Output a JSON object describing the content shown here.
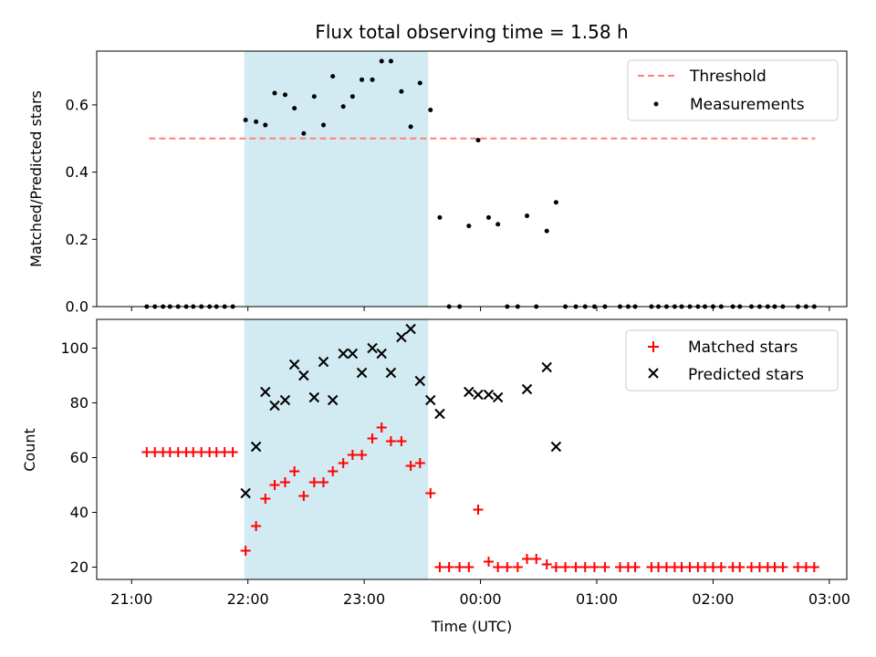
{
  "figure": {
    "title": "Flux total observing time = 1.58 h",
    "xlabel": "Time (UTC)",
    "xtick_labels": [
      "21:00",
      "22:00",
      "23:00",
      "00:00",
      "01:00",
      "02:00",
      "03:00"
    ]
  },
  "chart_data": [
    {
      "type": "scatter",
      "panel": "top",
      "ylabel": "Matched/Predicted stars",
      "x_unit": "hours since 21:00 UTC",
      "xlim": [
        -0.3,
        6.15
      ],
      "ylim": [
        0,
        0.76
      ],
      "yticks": [
        0.0,
        0.2,
        0.4,
        0.6
      ],
      "ytick_labels": [
        "0.0",
        "0.2",
        "0.4",
        "0.6"
      ],
      "highlight_span": {
        "x": [
          0.97,
          2.55
        ],
        "color": "#add8e6"
      },
      "legend": {
        "position": "upper right",
        "entries": [
          "Threshold",
          "Measurements"
        ]
      },
      "series": [
        {
          "name": "Threshold",
          "style": "dashed-line",
          "color": "#ff7f7f",
          "x": [
            0.15,
            5.88
          ],
          "y": [
            0.5,
            0.5
          ]
        },
        {
          "name": "Measurements",
          "style": "dot",
          "color": "#000000",
          "x": [
            0.13,
            0.2,
            0.27,
            0.33,
            0.4,
            0.47,
            0.53,
            0.6,
            0.67,
            0.73,
            0.8,
            0.87,
            0.98,
            1.07,
            1.15,
            1.23,
            1.32,
            1.4,
            1.48,
            1.57,
            1.65,
            1.73,
            1.82,
            1.9,
            1.98,
            2.07,
            2.15,
            2.23,
            2.32,
            2.4,
            2.48,
            2.57,
            2.65,
            2.73,
            2.82,
            2.9,
            2.98,
            3.07,
            3.15,
            3.23,
            3.32,
            3.4,
            3.48,
            3.57,
            3.65,
            3.73,
            3.82,
            3.9,
            3.98,
            4.07,
            4.2,
            4.27,
            4.33,
            4.47,
            4.53,
            4.6,
            4.67,
            4.73,
            4.8,
            4.87,
            4.93,
            5.0,
            5.07,
            5.17,
            5.23,
            5.33,
            5.4,
            5.47,
            5.53,
            5.6,
            5.73,
            5.8,
            5.87
          ],
          "y": [
            0,
            0,
            0,
            0,
            0,
            0,
            0,
            0,
            0,
            0,
            0,
            0,
            0.555,
            0.55,
            0.54,
            0.635,
            0.63,
            0.59,
            0.515,
            0.625,
            0.54,
            0.685,
            0.595,
            0.625,
            0.675,
            0.675,
            0.73,
            0.73,
            0.64,
            0.535,
            0.665,
            0.585,
            0.265,
            0,
            0,
            0.24,
            0.495,
            0.265,
            0.245,
            0,
            0,
            0.27,
            0,
            0.225,
            0.31,
            0,
            0,
            0,
            0,
            0,
            0,
            0,
            0,
            0,
            0,
            0,
            0,
            0,
            0,
            0,
            0,
            0,
            0,
            0,
            0,
            0,
            0,
            0,
            0,
            0,
            0,
            0,
            0
          ]
        }
      ]
    },
    {
      "type": "scatter",
      "panel": "bottom",
      "ylabel": "Count",
      "x_unit": "hours since 21:00 UTC",
      "xlim": [
        -0.3,
        6.15
      ],
      "ylim": [
        15.5,
        110.5
      ],
      "yticks": [
        20,
        40,
        60,
        80,
        100
      ],
      "ytick_labels": [
        "20",
        "40",
        "60",
        "80",
        "100"
      ],
      "highlight_span": {
        "x": [
          0.97,
          2.55
        ],
        "color": "#add8e6"
      },
      "legend": {
        "position": "upper right",
        "entries": [
          "Matched stars",
          "Predicted stars"
        ]
      },
      "series": [
        {
          "name": "Matched stars",
          "marker": "plus",
          "color": "#ff0000",
          "x": [
            0.13,
            0.2,
            0.27,
            0.33,
            0.4,
            0.47,
            0.53,
            0.6,
            0.67,
            0.73,
            0.8,
            0.87,
            0.98,
            1.07,
            1.15,
            1.23,
            1.32,
            1.4,
            1.48,
            1.57,
            1.65,
            1.73,
            1.82,
            1.9,
            1.98,
            2.07,
            2.15,
            2.23,
            2.32,
            2.4,
            2.48,
            2.57,
            2.65,
            2.73,
            2.82,
            2.9,
            2.98,
            3.07,
            3.15,
            3.23,
            3.32,
            3.4,
            3.48,
            3.57,
            3.65,
            3.73,
            3.82,
            3.9,
            3.98,
            4.07,
            4.2,
            4.27,
            4.33,
            4.47,
            4.53,
            4.6,
            4.67,
            4.73,
            4.8,
            4.87,
            4.93,
            5.0,
            5.07,
            5.17,
            5.23,
            5.33,
            5.4,
            5.47,
            5.53,
            5.6,
            5.73,
            5.8,
            5.87
          ],
          "y": [
            62,
            62,
            62,
            62,
            62,
            62,
            62,
            62,
            62,
            62,
            62,
            62,
            26,
            35,
            45,
            50,
            51,
            55,
            46,
            51,
            51,
            55,
            58,
            61,
            61,
            67,
            71,
            66,
            66,
            57,
            58,
            47,
            20,
            20,
            20,
            20,
            41,
            22,
            20,
            20,
            20,
            23,
            23,
            21,
            20,
            20,
            20,
            20,
            20,
            20,
            20,
            20,
            20,
            20,
            20,
            20,
            20,
            20,
            20,
            20,
            20,
            20,
            20,
            20,
            20,
            20,
            20,
            20,
            20,
            20,
            20,
            20,
            20
          ]
        },
        {
          "name": "Predicted stars",
          "marker": "x",
          "color": "#000000",
          "x": [
            0.98,
            1.07,
            1.15,
            1.23,
            1.32,
            1.4,
            1.48,
            1.57,
            1.65,
            1.73,
            1.82,
            1.9,
            1.98,
            2.07,
            2.15,
            2.23,
            2.32,
            2.4,
            2.48,
            2.57,
            2.65,
            2.9,
            2.98,
            3.07,
            3.15,
            3.4,
            3.57,
            3.65
          ],
          "y": [
            47,
            64,
            84,
            79,
            81,
            94,
            90,
            82,
            95,
            81,
            98,
            98,
            91,
            100,
            98,
            91,
            104,
            107,
            88,
            81,
            76,
            84,
            83,
            83,
            82,
            85,
            93,
            64
          ]
        }
      ]
    }
  ]
}
